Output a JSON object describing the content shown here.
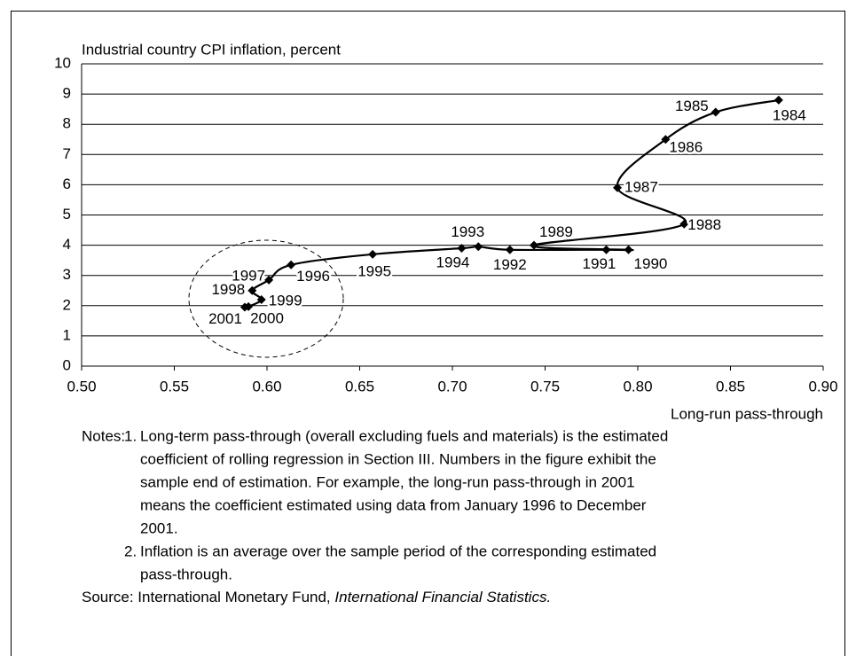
{
  "chart_data": {
    "type": "line",
    "title": "Industrial country CPI inflation, percent",
    "x_label": "Long-run pass-through",
    "x": [
      0.876,
      0.842,
      0.815,
      0.789,
      0.825,
      0.744,
      0.795,
      0.783,
      0.731,
      0.714,
      0.705,
      0.657,
      0.613,
      0.601,
      0.592,
      0.597,
      0.59,
      0.588
    ],
    "series": [
      {
        "color": "#000000",
        "values": [
          8.8,
          8.4,
          7.5,
          5.9,
          4.7,
          4.0,
          3.85,
          3.85,
          3.85,
          3.95,
          3.9,
          3.7,
          3.35,
          2.85,
          2.5,
          2.2,
          1.97,
          1.95
        ]
      }
    ],
    "point_labels": [
      "1984",
      "1985",
      "1986",
      "1987",
      "1988",
      "1989",
      "1990",
      "1991",
      "1992",
      "1993",
      "1994",
      "1995",
      "1996",
      "1997",
      "1998",
      "1999",
      "2000",
      "2001"
    ],
    "xlim": [
      0.5,
      0.9
    ],
    "xticks": [
      {
        "value": 0.5,
        "label": "0.50"
      },
      {
        "value": 0.55,
        "label": "0.55"
      },
      {
        "value": 0.6,
        "label": "0.60"
      },
      {
        "value": 0.65,
        "label": "0.65"
      },
      {
        "value": 0.7,
        "label": "0.70"
      },
      {
        "value": 0.75,
        "label": "0.75"
      },
      {
        "value": 0.8,
        "label": "0.80"
      },
      {
        "value": 0.85,
        "label": "0.85"
      },
      {
        "value": 0.9,
        "label": "0.90"
      }
    ],
    "ylim": [
      0,
      10
    ],
    "yticks": [
      0,
      1,
      2,
      3,
      4,
      5,
      6,
      7,
      8,
      9,
      10
    ],
    "grid": true
  },
  "notes": {
    "label": "Notes:",
    "items": [
      {
        "number": "1.",
        "lines": [
          "Long-term pass-through (overall excluding fuels and materials) is the estimated",
          "coefficient of rolling regression in Section III. Numbers in the figure exhibit the",
          "sample end of estimation. For example, the long-run pass-through in 2001",
          "means the coefficient estimated using data from January 1996 to December",
          "2001."
        ]
      },
      {
        "number": "2.",
        "lines": [
          "Inflation is an average over the sample period of the corresponding estimated",
          "pass-through."
        ]
      }
    ]
  },
  "source": {
    "label": "Source: International Monetary Fund, ",
    "title": "International Financial Statistics."
  }
}
